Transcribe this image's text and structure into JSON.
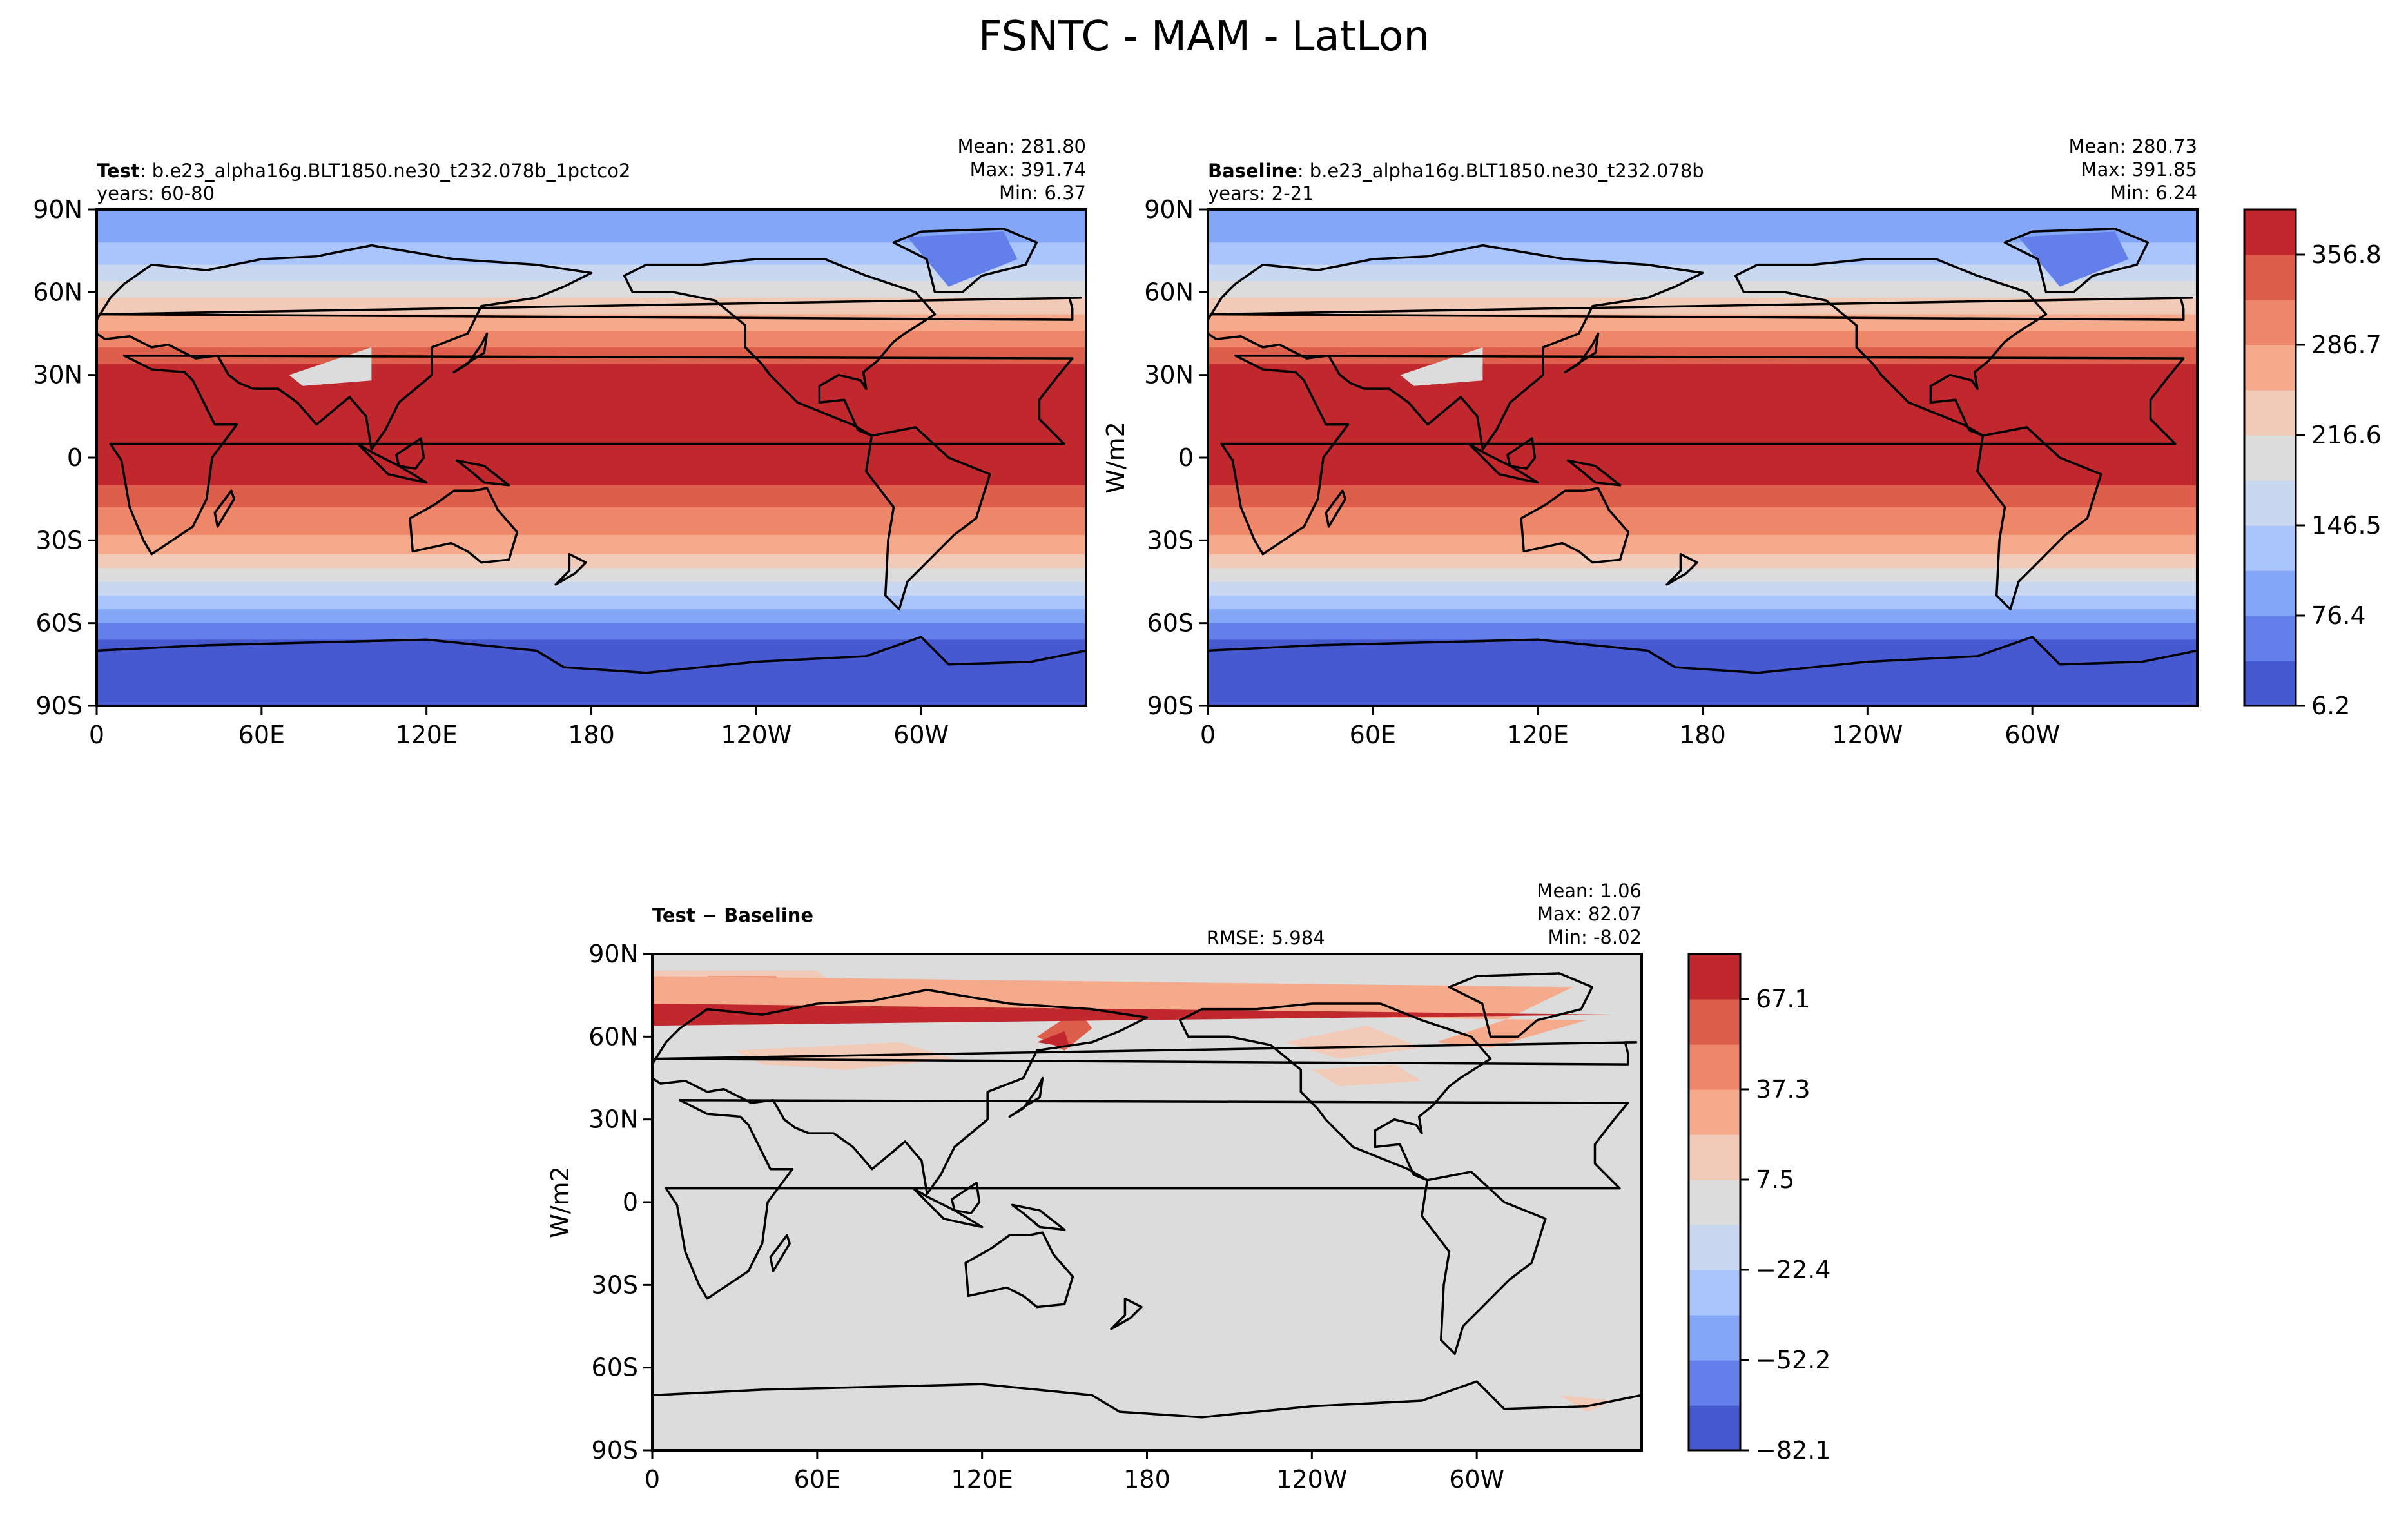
{
  "title": "FSNTC - MAM - LatLon",
  "colors": {
    "ocean_warm": "#c0282d",
    "land_line": "#000000",
    "neutral": "#dcdcdc"
  },
  "panels": [
    {
      "id": "test",
      "title_bold": "Test",
      "title_rest": ": b.e23_alpha16g.BLT1850.ne30_t232.078b_1pctco2",
      "years": "years: 60-80",
      "stats": [
        "Mean: 281.80",
        "Max: 391.74",
        "Min:  6.37"
      ],
      "ylabel": "",
      "rmse": ""
    },
    {
      "id": "baseline",
      "title_bold": "Baseline",
      "title_rest": ": b.e23_alpha16g.BLT1850.ne30_t232.078b",
      "years": "years: 2-21",
      "stats": [
        "Mean: 280.73",
        "Max: 391.85",
        "Min:  6.24"
      ],
      "ylabel": "W/m2",
      "rmse": ""
    },
    {
      "id": "diff",
      "title_bold": "Test − Baseline",
      "title_rest": "",
      "years": "",
      "stats": [
        "Mean:  1.06",
        "Max: 82.07",
        "Min: -8.02"
      ],
      "ylabel": "W/m2",
      "rmse": "RMSE: 5.984"
    }
  ],
  "axes": {
    "xticks": [
      "0",
      "60E",
      "120E",
      "180",
      "120W",
      "60W"
    ],
    "yticks": [
      "90N",
      "60N",
      "30N",
      "0",
      "30S",
      "60S",
      "90S"
    ]
  },
  "colorbars": [
    {
      "id": "main",
      "ticks": [
        "356.8",
        "286.7",
        "216.6",
        "146.5",
        "76.4",
        "6.2"
      ],
      "colors": [
        "#4659d1",
        "#6380ea",
        "#84a6f7",
        "#a9c5fc",
        "#c9d8f0",
        "#dcdcdc",
        "#f1cbb8",
        "#f6aa8c",
        "#ee8769",
        "#dc5e4b",
        "#c0282d"
      ]
    },
    {
      "id": "diff",
      "ticks": [
        "67.1",
        "37.3",
        "7.5",
        "−22.4",
        "−52.2",
        "−82.1"
      ],
      "colors": [
        "#4659d1",
        "#6380ea",
        "#84a6f7",
        "#a9c5fc",
        "#c9d8f0",
        "#dcdcdc",
        "#f1cbb8",
        "#f6aa8c",
        "#ee8769",
        "#dc5e4b",
        "#c0282d"
      ]
    }
  ],
  "chart_data": [
    {
      "type": "heatmap",
      "panel": "test",
      "title": "FSNTC - MAM - LatLon",
      "xticks": [
        "0",
        "60E",
        "120E",
        "180",
        "120W",
        "60W"
      ],
      "yticks": [
        "90N",
        "60N",
        "30N",
        "0",
        "30S",
        "60S",
        "90S"
      ],
      "zonal_lat": [
        -90,
        -75,
        -65,
        -55,
        -45,
        -35,
        -25,
        -15,
        -5,
        5,
        15,
        25,
        35,
        45,
        55,
        65,
        75,
        90
      ],
      "zonal_value": [
        20,
        30,
        80,
        160,
        230,
        290,
        330,
        370,
        385,
        390,
        385,
        375,
        340,
        280,
        230,
        180,
        120,
        90
      ],
      "mean": 281.8,
      "max": 391.74,
      "min": 6.37,
      "clevels": [
        6.2,
        41.3,
        76.4,
        111.4,
        146.5,
        181.5,
        216.6,
        251.6,
        286.7,
        321.7,
        356.8,
        391.9
      ]
    },
    {
      "type": "heatmap",
      "panel": "baseline",
      "xticks": [
        "0",
        "60E",
        "120E",
        "180",
        "120W",
        "60W"
      ],
      "yticks": [
        "90N",
        "60N",
        "30N",
        "0",
        "30S",
        "60S",
        "90S"
      ],
      "ylabel": "W/m2",
      "mean": 280.73,
      "max": 391.85,
      "min": 6.24,
      "clevels": [
        6.2,
        41.3,
        76.4,
        111.4,
        146.5,
        181.5,
        216.6,
        251.6,
        286.7,
        321.7,
        356.8,
        391.9
      ]
    },
    {
      "type": "heatmap",
      "panel": "diff",
      "xticks": [
        "0",
        "60E",
        "120E",
        "180",
        "120W",
        "60W"
      ],
      "yticks": [
        "90N",
        "60N",
        "30N",
        "0",
        "30S",
        "60S",
        "90S"
      ],
      "ylabel": "W/m2",
      "mean": 1.06,
      "max": 82.07,
      "min": -8.02,
      "rmse": 5.984,
      "clevels": [
        -82.1,
        -67.2,
        -52.2,
        -37.3,
        -22.4,
        -7.5,
        7.5,
        22.4,
        37.3,
        52.2,
        67.1,
        82.1
      ]
    }
  ]
}
